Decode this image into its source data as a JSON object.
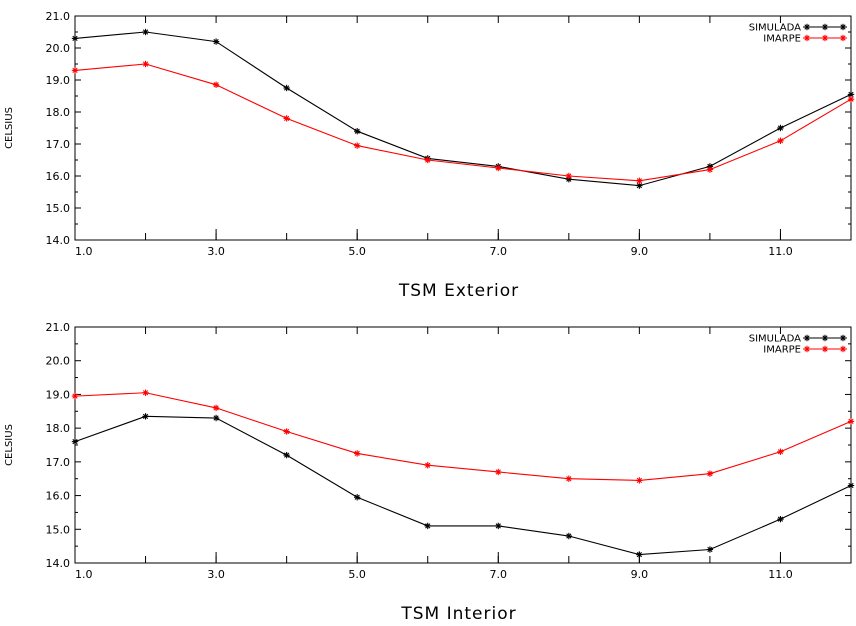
{
  "chart_data": [
    {
      "type": "line",
      "title": "TSM  Exterior",
      "ylabel": "CELSIUS",
      "xlim": [
        1,
        12
      ],
      "ylim": [
        14,
        21
      ],
      "xticks": [
        "1.0",
        "3.0",
        "5.0",
        "7.0",
        "9.0",
        "11.0"
      ],
      "yticks": [
        "14.0",
        "15.0",
        "16.0",
        "17.0",
        "18.0",
        "19.0",
        "20.0",
        "21.0"
      ],
      "legend": "top-right",
      "grid": false,
      "x": [
        1,
        2,
        3,
        4,
        5,
        6,
        7,
        8,
        9,
        10,
        11,
        12
      ],
      "series": [
        {
          "name": "SIMULADA",
          "color": "#000000",
          "values": [
            20.3,
            20.5,
            20.2,
            18.75,
            17.4,
            16.55,
            16.3,
            15.9,
            15.7,
            16.3,
            17.5,
            18.55
          ]
        },
        {
          "name": "IMARPE",
          "color": "#ff0000",
          "values": [
            19.3,
            19.5,
            18.85,
            17.8,
            16.95,
            16.5,
            16.25,
            16.0,
            15.85,
            16.2,
            17.1,
            18.4
          ]
        }
      ]
    },
    {
      "type": "line",
      "title": "TSM  Interior",
      "ylabel": "CELSIUS",
      "xlim": [
        1,
        12
      ],
      "ylim": [
        14,
        21
      ],
      "xticks": [
        "1.0",
        "3.0",
        "5.0",
        "7.0",
        "9.0",
        "11.0"
      ],
      "yticks": [
        "14.0",
        "15.0",
        "16.0",
        "17.0",
        "18.0",
        "19.0",
        "20.0",
        "21.0"
      ],
      "legend": "top-right",
      "grid": false,
      "x": [
        1,
        2,
        3,
        4,
        5,
        6,
        7,
        8,
        9,
        10,
        11,
        12
      ],
      "series": [
        {
          "name": "SIMULADA",
          "color": "#000000",
          "values": [
            17.6,
            18.35,
            18.3,
            17.2,
            15.95,
            15.1,
            15.1,
            14.8,
            14.25,
            14.4,
            15.3,
            16.3
          ]
        },
        {
          "name": "IMARPE",
          "color": "#ff0000",
          "values": [
            18.95,
            19.05,
            18.6,
            17.9,
            17.25,
            16.9,
            16.7,
            16.5,
            16.45,
            16.65,
            17.3,
            18.2
          ]
        }
      ]
    }
  ]
}
